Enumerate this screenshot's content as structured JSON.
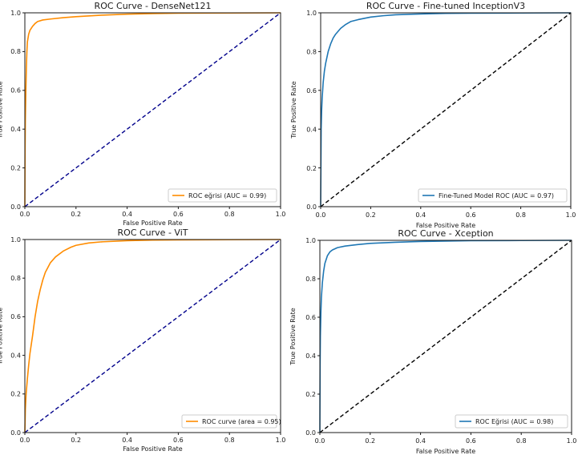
{
  "chart_data": [
    {
      "type": "line",
      "title": "ROC Curve - DenseNet121",
      "xlabel": "False Positive Rate",
      "ylabel": "True Positive Rate",
      "xlim": [
        0,
        1
      ],
      "ylim": [
        0,
        1
      ],
      "xticks": [
        "0.0",
        "0.2",
        "0.4",
        "0.6",
        "0.8",
        "1.0"
      ],
      "yticks": [
        "0.0",
        "0.2",
        "0.4",
        "0.6",
        "0.8",
        "1.0"
      ],
      "legend_position": "lower-right",
      "grid": false,
      "series": [
        {
          "name": "ROC eğrisi (AUC = 0.99)",
          "color": "#ff8c00",
          "style": "solid",
          "x": [
            0,
            0.001,
            0.002,
            0.004,
            0.006,
            0.008,
            0.01,
            0.015,
            0.02,
            0.03,
            0.04,
            0.05,
            0.07,
            0.1,
            0.15,
            0.2,
            0.3,
            0.4,
            0.5,
            0.6,
            0.8,
            1.0
          ],
          "y": [
            0,
            0.3,
            0.45,
            0.6,
            0.72,
            0.8,
            0.85,
            0.89,
            0.91,
            0.93,
            0.945,
            0.955,
            0.963,
            0.968,
            0.975,
            0.98,
            0.988,
            0.993,
            0.996,
            0.998,
            0.999,
            1.0
          ]
        },
        {
          "name": "",
          "color": "#00008b",
          "style": "dashed",
          "x": [
            0,
            1
          ],
          "y": [
            0,
            1
          ]
        }
      ]
    },
    {
      "type": "line",
      "title": "ROC Curve - Fine-tuned InceptionV3",
      "xlabel": "False Positive Rate",
      "ylabel": "True Positive Rate",
      "xlim": [
        0,
        1
      ],
      "ylim": [
        0,
        1
      ],
      "xticks": [
        "0.0",
        "0.2",
        "0.4",
        "0.6",
        "0.8",
        "1.0"
      ],
      "yticks": [
        "0.0",
        "0.2",
        "0.4",
        "0.6",
        "0.8",
        "1.0"
      ],
      "legend_position": "lower-right",
      "grid": false,
      "series": [
        {
          "name": "Fine-Tuned Model ROC (AUC = 0.97)",
          "color": "#1f77b4",
          "style": "solid",
          "x": [
            0,
            0.001,
            0.002,
            0.004,
            0.006,
            0.01,
            0.015,
            0.02,
            0.03,
            0.04,
            0.05,
            0.06,
            0.08,
            0.1,
            0.12,
            0.15,
            0.2,
            0.25,
            0.3,
            0.4,
            0.5,
            0.6,
            0.8,
            1.0
          ],
          "y": [
            0,
            0.2,
            0.4,
            0.5,
            0.56,
            0.64,
            0.7,
            0.74,
            0.8,
            0.84,
            0.87,
            0.89,
            0.92,
            0.94,
            0.955,
            0.965,
            0.978,
            0.985,
            0.99,
            0.994,
            0.997,
            0.998,
            0.999,
            1.0
          ]
        },
        {
          "name": "",
          "color": "#000000",
          "style": "dashed",
          "x": [
            0,
            1
          ],
          "y": [
            0,
            1
          ]
        }
      ]
    },
    {
      "type": "line",
      "title": "ROC Curve - ViT",
      "xlabel": "False Positive Rate",
      "ylabel": "True Positive Rate",
      "xlim": [
        0,
        1
      ],
      "ylim": [
        0,
        1
      ],
      "xticks": [
        "0.0",
        "0.2",
        "0.4",
        "0.6",
        "0.8",
        "1.0"
      ],
      "yticks": [
        "0.0",
        "0.2",
        "0.4",
        "0.6",
        "0.8",
        "1.0"
      ],
      "legend_position": "lower-right",
      "grid": false,
      "series": [
        {
          "name": "ROC curve (area = 0.95)",
          "color": "#ff8c00",
          "style": "solid",
          "x": [
            0,
            0.002,
            0.005,
            0.01,
            0.015,
            0.02,
            0.03,
            0.04,
            0.05,
            0.06,
            0.07,
            0.08,
            0.1,
            0.12,
            0.15,
            0.18,
            0.2,
            0.25,
            0.3,
            0.4,
            0.5,
            0.6,
            0.8,
            1.0
          ],
          "y": [
            0,
            0.12,
            0.2,
            0.28,
            0.35,
            0.41,
            0.5,
            0.6,
            0.68,
            0.74,
            0.79,
            0.83,
            0.88,
            0.91,
            0.94,
            0.96,
            0.97,
            0.982,
            0.988,
            0.994,
            0.997,
            0.998,
            0.999,
            1.0
          ]
        },
        {
          "name": "",
          "color": "#00008b",
          "style": "dashed",
          "x": [
            0,
            1
          ],
          "y": [
            0,
            1
          ]
        }
      ]
    },
    {
      "type": "line",
      "title": "ROC Curve - Xception",
      "xlabel": "False Positive Rate",
      "ylabel": "True Positive Rate",
      "xlim": [
        0,
        1
      ],
      "ylim": [
        0,
        1
      ],
      "xticks": [
        "0.0",
        "0.2",
        "0.4",
        "0.6",
        "0.8",
        "1.0"
      ],
      "yticks": [
        "0.0",
        "0.2",
        "0.4",
        "0.6",
        "0.8",
        "1.0"
      ],
      "legend_position": "lower-right",
      "grid": false,
      "series": [
        {
          "name": "ROC Eğrisi (AUC = 0.98)",
          "color": "#1f77b4",
          "style": "solid",
          "x": [
            0,
            0.001,
            0.002,
            0.004,
            0.006,
            0.01,
            0.015,
            0.02,
            0.03,
            0.04,
            0.05,
            0.07,
            0.1,
            0.15,
            0.2,
            0.3,
            0.4,
            0.5,
            0.6,
            0.8,
            1.0
          ],
          "y": [
            0,
            0.35,
            0.5,
            0.62,
            0.7,
            0.78,
            0.84,
            0.88,
            0.92,
            0.94,
            0.95,
            0.962,
            0.97,
            0.978,
            0.984,
            0.99,
            0.994,
            0.996,
            0.998,
            0.999,
            1.0
          ]
        },
        {
          "name": "",
          "color": "#000000",
          "style": "dashed",
          "x": [
            0,
            1
          ],
          "y": [
            0,
            1
          ]
        }
      ]
    }
  ]
}
